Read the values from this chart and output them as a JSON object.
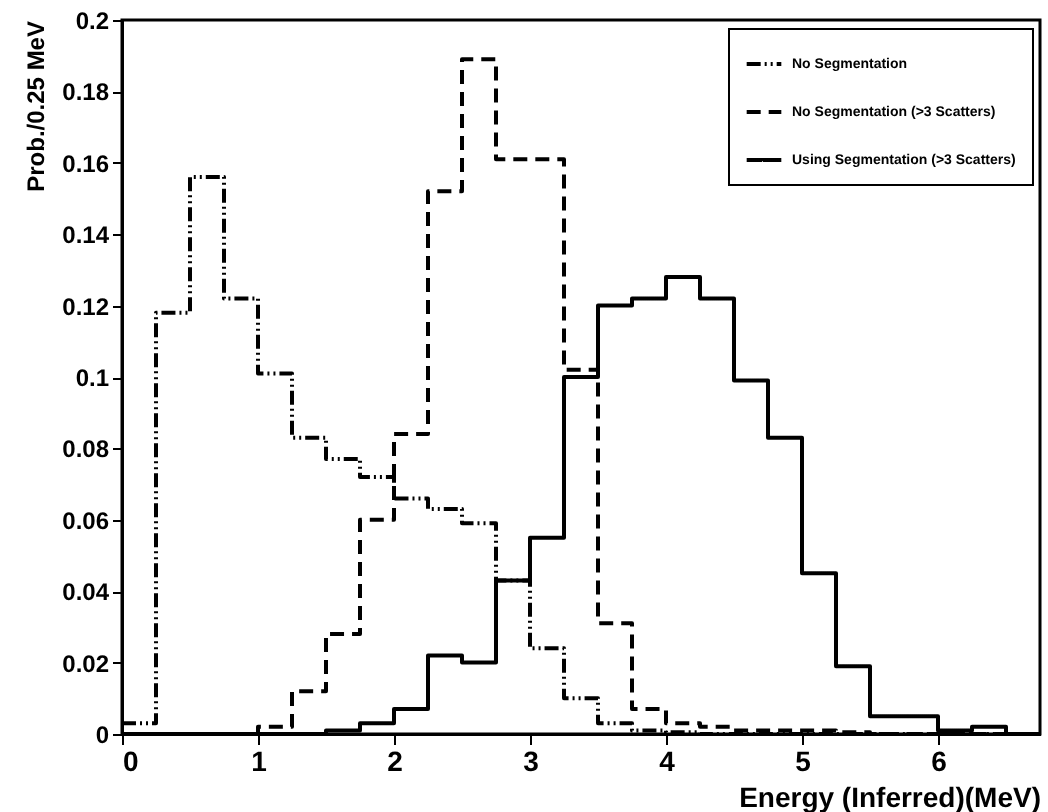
{
  "chart_data": {
    "type": "histogram",
    "xlabel": "Energy (Inferred)(MeV)",
    "ylabel": "Prob./0.25 MeV",
    "bins": [
      0,
      0.25,
      0.5,
      0.75,
      1,
      1.25,
      1.5,
      1.75,
      2,
      2.25,
      2.5,
      2.75,
      3,
      3.25,
      3.5,
      3.75,
      4,
      4.25,
      4.5,
      4.75,
      5,
      5.25,
      5.5,
      5.75,
      6,
      6.25,
      6.5,
      6.75
    ],
    "series": [
      {
        "name": "No Segmentation",
        "color": "#000000",
        "line_style": "dashdot",
        "values": [
          0.003,
          0.118,
          0.156,
          0.122,
          0.101,
          0.083,
          0.077,
          0.072,
          0.066,
          0.063,
          0.059,
          0.043,
          0.024,
          0.01,
          0.003,
          0.001,
          0.0005,
          0,
          0,
          0,
          0,
          0,
          0,
          0,
          0,
          0,
          0
        ]
      },
      {
        "name": "No Segmentation (>3 Scatters)",
        "color": "#000000",
        "line_style": "dashed",
        "values": [
          0,
          0,
          0,
          0,
          0.002,
          0.012,
          0.028,
          0.06,
          0.084,
          0.152,
          0.189,
          0.161,
          0.161,
          0.102,
          0.031,
          0.007,
          0.003,
          0.002,
          0.001,
          0.001,
          0.001,
          0.0005,
          0,
          0,
          0,
          0,
          0
        ]
      },
      {
        "name": "Using Segmentation (>3 Scatters)",
        "color": "#000000",
        "line_style": "solid",
        "values": [
          0,
          0,
          0,
          0,
          0,
          0,
          0.001,
          0.003,
          0.007,
          0.022,
          0.02,
          0.043,
          0.055,
          0.1,
          0.12,
          0.122,
          0.128,
          0.122,
          0.099,
          0.083,
          0.045,
          0.019,
          0.005,
          0.005,
          0.001,
          0.002,
          0
        ]
      }
    ],
    "xlim": [
      0,
      6.75
    ],
    "xticks": [
      0,
      1,
      2,
      3,
      4,
      5,
      6
    ],
    "ylim": [
      0,
      0.2
    ],
    "yticks": [
      0,
      0.02,
      0.04,
      0.06,
      0.08,
      0.1,
      0.12,
      0.14,
      0.16,
      0.18,
      0.2
    ],
    "grid": false,
    "legend": "top right"
  }
}
